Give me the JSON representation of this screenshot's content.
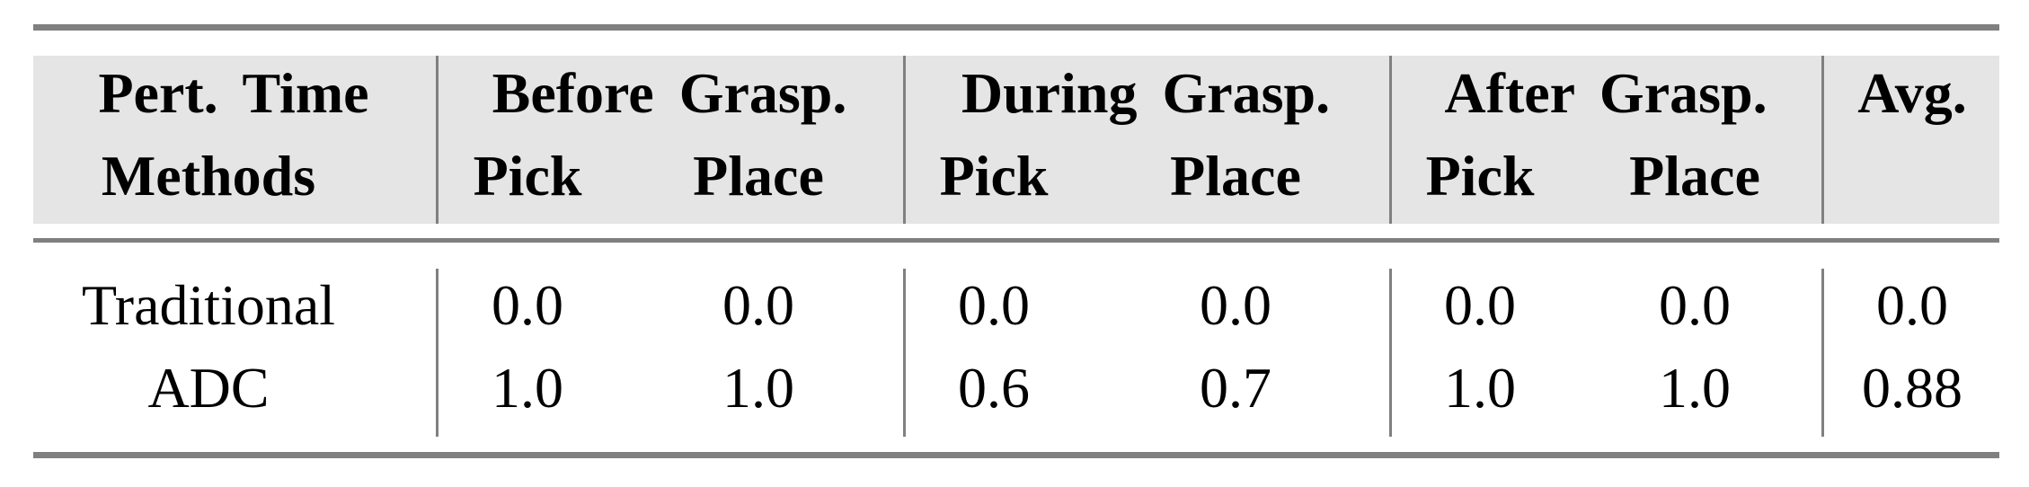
{
  "header": {
    "row1": [
      "Pert. Time",
      "Before Grasp.",
      "During Grasp.",
      "After Grasp.",
      "Avg."
    ],
    "row2": [
      "Methods",
      "Pick",
      "Place",
      "Pick",
      "Place",
      "Pick",
      "Place"
    ]
  },
  "rows": [
    {
      "method": "Traditional",
      "values": [
        "0.0",
        "0.0",
        "0.0",
        "0.0",
        "0.0",
        "0.0",
        "0.0"
      ]
    },
    {
      "method": "ADC",
      "values": [
        "1.0",
        "1.0",
        "0.6",
        "0.7",
        "1.0",
        "1.0",
        "0.88"
      ]
    }
  ],
  "colors": {
    "rule": "#808080",
    "header_bg": "#e5e5e5"
  }
}
